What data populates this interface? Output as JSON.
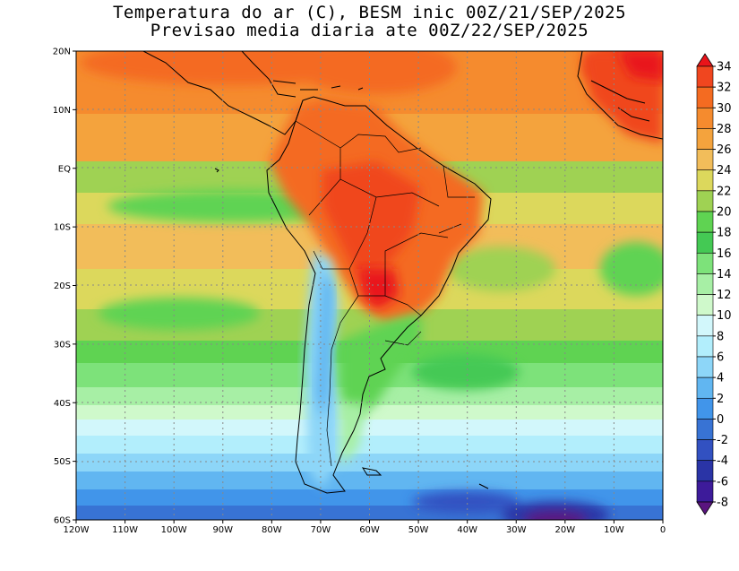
{
  "title": {
    "line1": "Temperatura do ar (C), BESM inic 00Z/21/SEP/2025",
    "line2": "Previsao media diaria ate 00Z/22/SEP/2025"
  },
  "map": {
    "lon_range": [
      -120,
      0
    ],
    "lat_range": [
      -60,
      20
    ],
    "grid": true,
    "lon_ticks": [
      "120W",
      "110W",
      "100W",
      "90W",
      "80W",
      "70W",
      "60W",
      "50W",
      "40W",
      "30W",
      "20W",
      "10W",
      "0"
    ],
    "lat_ticks": [
      "20N",
      "10N",
      "EQ",
      "10S",
      "20S",
      "30S",
      "40S",
      "50S",
      "60S"
    ]
  },
  "colorbar": {
    "levels": [
      "34",
      "32",
      "30",
      "28",
      "26",
      "24",
      "22",
      "20",
      "18",
      "16",
      "14",
      "12",
      "10",
      "8",
      "6",
      "4",
      "2",
      "0",
      "-2",
      "-4",
      "-6",
      "-8"
    ],
    "colors": [
      "#e9141a",
      "#f0461f",
      "#f46b21",
      "#f58b2e",
      "#f4a33d",
      "#f2bd5a",
      "#dcd85c",
      "#9fd253",
      "#5fd352",
      "#44c954",
      "#7de27a",
      "#a7efa5",
      "#cff9cb",
      "#d2f7fb",
      "#b2eefc",
      "#8dd6f8",
      "#61b6f1",
      "#4195ea",
      "#3873d4",
      "#3251c1",
      "#2a34a6",
      "#3d1b9a",
      "#5a147f"
    ]
  }
}
